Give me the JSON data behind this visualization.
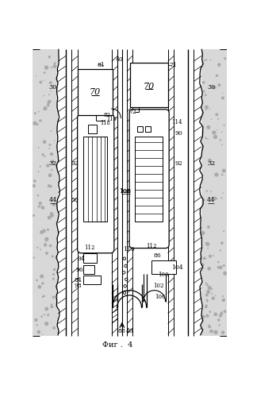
{
  "title": "Фиг .  4",
  "bg_color": "#ffffff",
  "fig_width": 3.19,
  "fig_height": 5.0,
  "dpi": 100,
  "formation_color": "#d8d8d8",
  "speckle_color": "#999999"
}
